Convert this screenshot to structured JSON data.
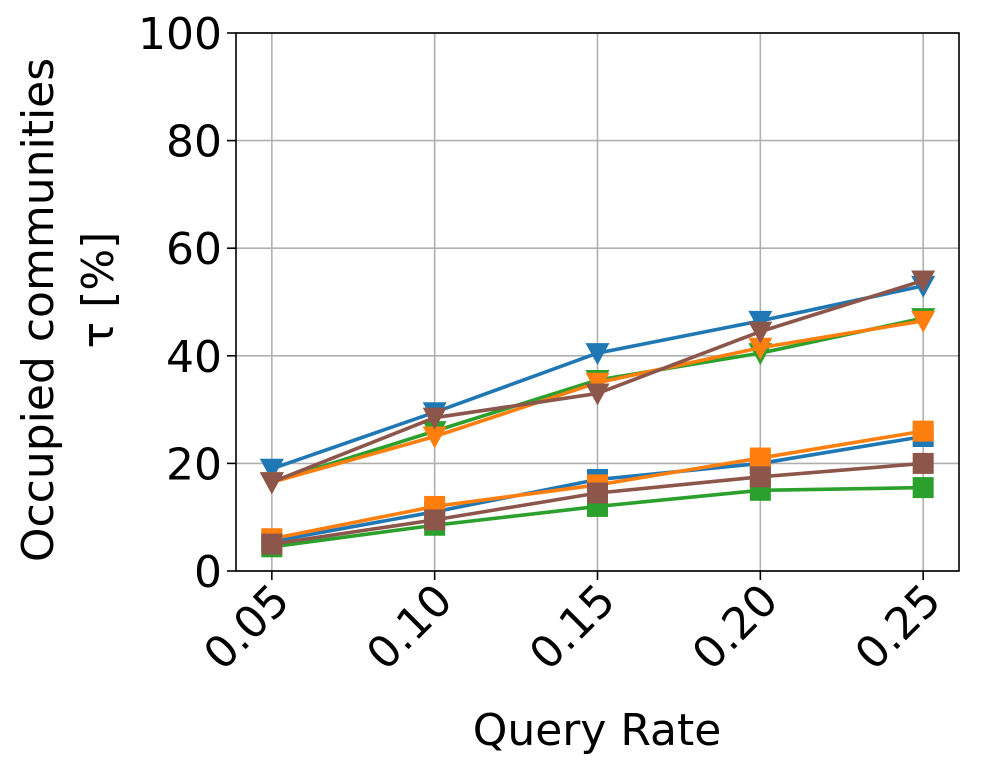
{
  "chart_data": {
    "type": "line",
    "title": "",
    "xlabel": "Query Rate",
    "ylabel": "Occupied communities",
    "ylabel_line2": "τ [%]",
    "x": [
      0.05,
      0.1,
      0.15,
      0.2,
      0.25
    ],
    "x_tick_labels": [
      "0.05",
      "0.10",
      "0.15",
      "0.20",
      "0.25"
    ],
    "y_ticks": [
      0,
      20,
      40,
      60,
      80,
      100
    ],
    "y_tick_labels": [
      "0",
      "20",
      "40",
      "60",
      "80",
      "100"
    ],
    "ylim": [
      0,
      100
    ],
    "xlim": [
      0.039,
      0.261
    ],
    "grid": true,
    "legend": "none",
    "series": [
      {
        "color": "#1f77b4",
        "marker": "square",
        "values": [
          5.5,
          11,
          17,
          20,
          25
        ]
      },
      {
        "color": "#2ca02c",
        "marker": "square",
        "values": [
          4.5,
          8.5,
          12,
          15,
          15.5
        ]
      },
      {
        "color": "#ff7f0e",
        "marker": "square",
        "values": [
          6,
          12,
          16,
          21,
          26
        ]
      },
      {
        "color": "#8c564b",
        "marker": "square",
        "values": [
          5,
          9.5,
          14.5,
          17.5,
          20
        ]
      },
      {
        "color": "#1f77b4",
        "marker": "triangle-down",
        "values": [
          19,
          29.5,
          40.5,
          46.5,
          53
        ]
      },
      {
        "color": "#2ca02c",
        "marker": "triangle-down",
        "values": [
          16.5,
          26,
          35.5,
          40.5,
          47
        ]
      },
      {
        "color": "#ff7f0e",
        "marker": "triangle-down",
        "values": [
          16.5,
          25,
          35,
          41.5,
          46.5
        ]
      },
      {
        "color": "#8c564b",
        "marker": "triangle-down",
        "values": [
          16.5,
          28.5,
          33,
          44.5,
          54
        ]
      }
    ]
  }
}
